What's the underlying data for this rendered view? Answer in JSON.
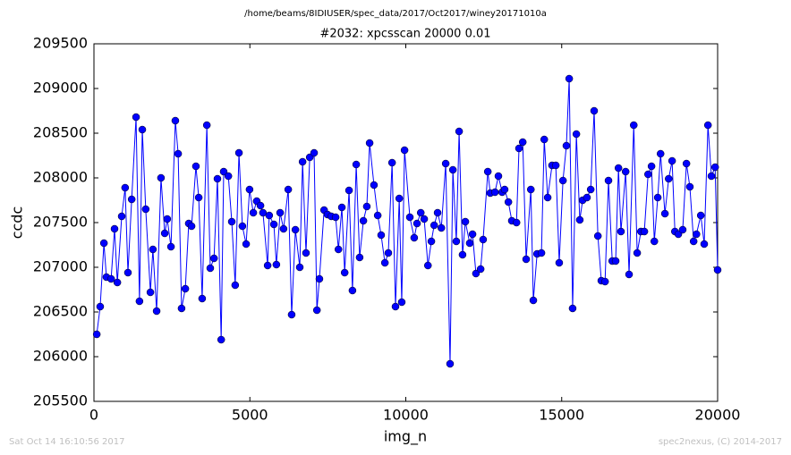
{
  "chart_data": {
    "type": "line",
    "suptitle": "/home/beams/8IDIUSER/spec_data/2017/Oct2017/winey20171010a",
    "title": "#2032: xpcsscan 20000 0.01",
    "x_label": "img_n",
    "y_label": "ccdc",
    "footer_left": "Sat Oct 14 16:10:56 2017",
    "footer_right": "spec2nexus, (C) 2014-2017",
    "color": "#0000ff",
    "xlim": [
      0,
      20000
    ],
    "ylim": [
      205500,
      209500
    ],
    "xticks": [
      0,
      5000,
      10000,
      15000,
      20000
    ],
    "yticks": [
      205500,
      206000,
      206500,
      207000,
      207500,
      208000,
      208500,
      209000,
      209500
    ],
    "x": [
      90,
      200,
      320,
      400,
      550,
      660,
      750,
      890,
      1000,
      1090,
      1210,
      1350,
      1460,
      1550,
      1660,
      1810,
      1890,
      2010,
      2150,
      2270,
      2350,
      2470,
      2610,
      2700,
      2810,
      2930,
      3040,
      3130,
      3270,
      3360,
      3470,
      3620,
      3730,
      3850,
      3960,
      4080,
      4160,
      4310,
      4420,
      4530,
      4650,
      4760,
      4880,
      4990,
      5110,
      5220,
      5340,
      5420,
      5570,
      5620,
      5770,
      5850,
      5970,
      6080,
      6230,
      6340,
      6460,
      6600,
      6690,
      6800,
      6920,
      7060,
      7150,
      7230,
      7380,
      7490,
      7610,
      7750,
      7840,
      7950,
      8040,
      8180,
      8290,
      8410,
      8520,
      8640,
      8750,
      8840,
      8980,
      9100,
      9210,
      9330,
      9440,
      9560,
      9670,
      9790,
      9870,
      9960,
      10130,
      10270,
      10360,
      10480,
      10590,
      10710,
      10820,
      10910,
      11020,
      11140,
      11280,
      11420,
      11510,
      11620,
      11710,
      11820,
      11910,
      12050,
      12140,
      12250,
      12400,
      12480,
      12630,
      12710,
      12860,
      12970,
      13090,
      13170,
      13290,
      13400,
      13550,
      13630,
      13750,
      13860,
      14010,
      14090,
      14210,
      14350,
      14440,
      14550,
      14690,
      14810,
      14920,
      15040,
      15150,
      15240,
      15350,
      15470,
      15580,
      15670,
      15810,
      15930,
      16040,
      16160,
      16270,
      16390,
      16500,
      16620,
      16730,
      16820,
      16900,
      17050,
      17160,
      17310,
      17420,
      17540,
      17650,
      17770,
      17880,
      17970,
      18080,
      18170,
      18310,
      18430,
      18540,
      18630,
      18740,
      18880,
      19000,
      19110,
      19230,
      19320,
      19460,
      19570,
      19690,
      19800,
      19920,
      20000
    ],
    "values": [
      206250,
      206560,
      207270,
      206890,
      206870,
      207430,
      206830,
      207570,
      207890,
      206940,
      207760,
      208680,
      206620,
      208540,
      207650,
      206720,
      207200,
      206510,
      208000,
      207380,
      207540,
      207230,
      208640,
      208270,
      206540,
      206760,
      207490,
      207460,
      208130,
      207780,
      206650,
      208590,
      206990,
      207100,
      207990,
      206190,
      208070,
      208020,
      207510,
      206800,
      208280,
      207460,
      207260,
      207870,
      207610,
      207740,
      207690,
      207610,
      207020,
      207580,
      207480,
      207030,
      207610,
      207430,
      207870,
      206470,
      207420,
      207000,
      208180,
      207160,
      208230,
      208280,
      206520,
      206870,
      207640,
      207590,
      207570,
      207560,
      207200,
      207670,
      206940,
      207860,
      206740,
      208150,
      207110,
      207520,
      207680,
      208390,
      207920,
      207580,
      207360,
      207050,
      207160,
      208170,
      206560,
      207770,
      206610,
      208310,
      207560,
      207330,
      207490,
      207610,
      207540,
      207020,
      207290,
      207470,
      207610,
      207440,
      208160,
      205920,
      208090,
      207290,
      208520,
      207140,
      207510,
      207270,
      207370,
      206930,
      206980,
      207310,
      208070,
      207830,
      207840,
      208020,
      207840,
      207870,
      207730,
      207520,
      207500,
      208330,
      208400,
      207090,
      207870,
      206630,
      207150,
      207160,
      208430,
      207780,
      208140,
      208140,
      207050,
      207970,
      208360,
      209110,
      206540,
      208490,
      207530,
      207750,
      207780,
      207870,
      208750,
      207350,
      206850,
      206840,
      207970,
      207070,
      207070,
      208110,
      207400,
      208070,
      206920,
      208590,
      207160,
      207400,
      207400,
      208040,
      208130,
      207290,
      207780,
      208270,
      207600,
      207990,
      208190,
      207400,
      207370,
      207420,
      208160,
      207900,
      207290,
      207370,
      207580,
      207260,
      208590,
      208020,
      208120,
      206970
    ]
  }
}
